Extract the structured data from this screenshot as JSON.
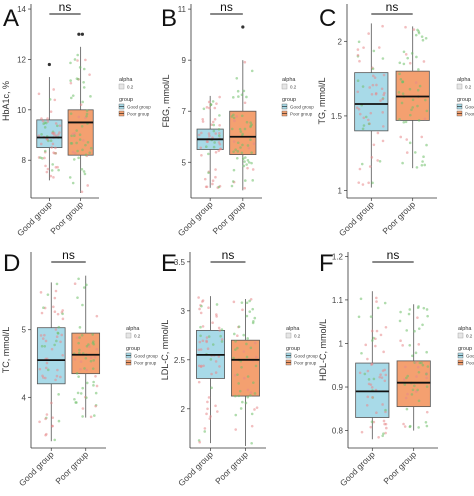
{
  "figure": {
    "colors": {
      "good_group": "#a8dae8",
      "poor_group": "#f4a070",
      "point_good": "#e8888a",
      "point_poor": "#6fbf6a",
      "median": "#111111",
      "whisker": "#555555",
      "outlier": "#333333",
      "axis": "#333333"
    }
  },
  "legend": {
    "alpha_title": "alpha",
    "alpha_value": "0.2",
    "group_title": "group",
    "group_items": [
      "Good group",
      "Poor group"
    ]
  },
  "chart_data": [
    {
      "panel": "A",
      "type": "box",
      "ylabel": "HbA1c, %",
      "significance": "ns",
      "categories": [
        "Good group",
        "Poor group"
      ],
      "yticks": [
        8,
        10,
        12,
        14
      ],
      "ylim": [
        6.5,
        14.2
      ],
      "boxes": [
        {
          "group": "Good group",
          "whisker_low": 7.2,
          "q1": 8.5,
          "median": 8.9,
          "q3": 9.6,
          "whisker_high": 11.3,
          "outliers": [
            11.8
          ]
        },
        {
          "group": "Poor group",
          "whisker_low": 6.7,
          "q1": 8.2,
          "median": 9.5,
          "q3": 10.0,
          "whisker_high": 12.5,
          "outliers": [
            13.0,
            13.0
          ]
        }
      ],
      "show_legend": true
    },
    {
      "panel": "B",
      "type": "box",
      "ylabel": "FBG, mmol/L",
      "significance": "ns",
      "categories": [
        "Good group",
        "Poor group"
      ],
      "yticks": [
        5,
        7,
        9,
        11
      ],
      "ylim": [
        3.6,
        11.2
      ],
      "boxes": [
        {
          "group": "Good group",
          "whisker_low": 4.0,
          "q1": 5.5,
          "median": 5.9,
          "q3": 6.3,
          "whisker_high": 7.6,
          "outliers": []
        },
        {
          "group": "Poor group",
          "whisker_low": 3.9,
          "q1": 5.3,
          "median": 6.0,
          "q3": 7.0,
          "whisker_high": 9.0,
          "outliers": [
            10.3
          ]
        }
      ],
      "show_legend": true
    },
    {
      "panel": "C",
      "type": "box",
      "ylabel": "TG, mmol/L",
      "significance": "ns",
      "categories": [
        "Good group",
        "Poor group"
      ],
      "yticks": [
        1.0,
        1.5,
        2.0
      ],
      "ylim": [
        0.95,
        2.25
      ],
      "boxes": [
        {
          "group": "Good group",
          "whisker_low": 1.02,
          "q1": 1.4,
          "median": 1.58,
          "q3": 1.79,
          "whisker_high": 2.12,
          "outliers": []
        },
        {
          "group": "Poor group",
          "whisker_low": 1.15,
          "q1": 1.47,
          "median": 1.63,
          "q3": 1.8,
          "whisker_high": 2.1,
          "outliers": []
        }
      ],
      "show_legend": true
    },
    {
      "panel": "D",
      "type": "box",
      "ylabel": "TC, mmol/L",
      "significance": "ns",
      "categories": [
        "Good group",
        "Poor group"
      ],
      "yticks": [
        4,
        5
      ],
      "ylim": [
        3.25,
        6.15
      ],
      "boxes": [
        {
          "group": "Good group",
          "whisker_low": 3.35,
          "q1": 4.2,
          "median": 4.55,
          "q3": 5.03,
          "whisker_high": 5.7,
          "outliers": []
        },
        {
          "group": "Poor group",
          "whisker_low": 3.7,
          "q1": 4.35,
          "median": 4.63,
          "q3": 4.95,
          "whisker_high": 5.8,
          "outliers": []
        }
      ],
      "show_legend": true
    },
    {
      "panel": "E",
      "type": "box",
      "ylabel": "LDL-C, mmol/L",
      "significance": "ns",
      "categories": [
        "Good group",
        "Poor group"
      ],
      "yticks": [
        2.0,
        2.5,
        3.0,
        3.5
      ],
      "ylim": [
        1.6,
        3.6
      ],
      "boxes": [
        {
          "group": "Good group",
          "whisker_low": 1.65,
          "q1": 2.31,
          "median": 2.55,
          "q3": 2.8,
          "whisker_high": 3.15,
          "outliers": []
        },
        {
          "group": "Poor group",
          "whisker_low": 1.62,
          "q1": 2.13,
          "median": 2.5,
          "q3": 2.7,
          "whisker_high": 3.12,
          "outliers": []
        }
      ],
      "show_legend": true
    },
    {
      "panel": "F",
      "type": "box",
      "ylabel": "HDL-C, mmol/L",
      "significance": "ns",
      "categories": [
        "Good group",
        "Poor group"
      ],
      "yticks": [
        0.8,
        0.9,
        1.0,
        1.1,
        1.2
      ],
      "ylim": [
        0.76,
        1.21
      ],
      "boxes": [
        {
          "group": "Good group",
          "whisker_low": 0.78,
          "q1": 0.83,
          "median": 0.89,
          "q3": 0.955,
          "whisker_high": 1.12,
          "outliers": []
        },
        {
          "group": "Poor group",
          "whisker_low": 0.8,
          "q1": 0.855,
          "median": 0.91,
          "q3": 0.96,
          "whisker_high": 1.09,
          "outliers": []
        }
      ],
      "show_legend": true
    }
  ]
}
